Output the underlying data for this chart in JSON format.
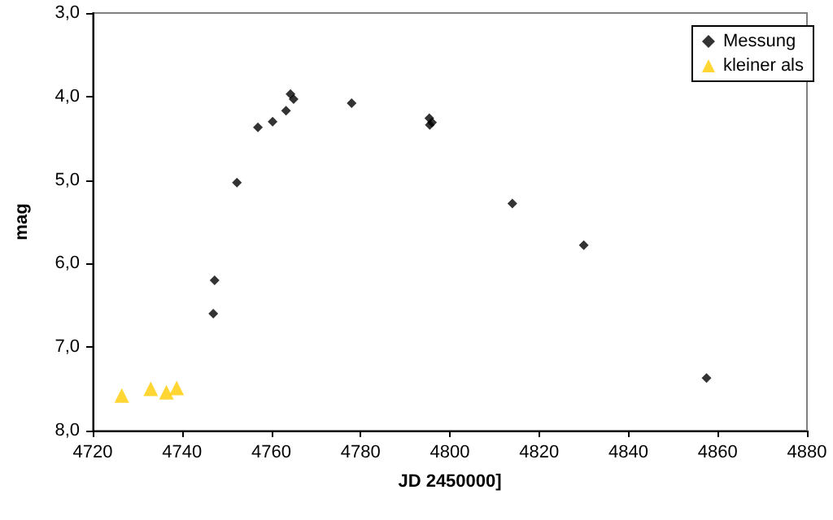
{
  "chart_data": {
    "type": "scatter",
    "xlabel": "JD 2450000]",
    "ylabel": "mag",
    "xlim": [
      4720,
      4880
    ],
    "xticks": [
      4720,
      4740,
      4760,
      4780,
      4800,
      4820,
      4840,
      4860,
      4880
    ],
    "ylim": [
      8.0,
      3.0
    ],
    "yticks": [
      {
        "value": 3,
        "label": "3,0"
      },
      {
        "value": 4,
        "label": "4,0"
      },
      {
        "value": 5,
        "label": "5,0"
      },
      {
        "value": 6,
        "label": "6,0"
      },
      {
        "value": 7,
        "label": "7,0"
      },
      {
        "value": 8,
        "label": "8,0"
      }
    ],
    "grid": false,
    "legend": "top right",
    "series": [
      {
        "name": "Messung",
        "color": "#000000",
        "marker": "diamond",
        "x": [
          4747,
          4747.3,
          4752.3,
          4757,
          4760.3,
          4763.3,
          4764.3,
          4765,
          4778,
          4795.4,
          4795.5,
          4796,
          4814,
          4830,
          4857.5
        ],
        "values": [
          6.6,
          6.2,
          5.03,
          4.37,
          4.3,
          4.17,
          3.97,
          4.03,
          4.08,
          4.26,
          4.34,
          4.31,
          5.28,
          5.78,
          7.37
        ]
      },
      {
        "name": "kleiner als",
        "color": "#ffcc00",
        "marker": "triangle",
        "x": [
          4726.5,
          4733,
          4736.5,
          4738.8
        ],
        "values": [
          7.58,
          7.5,
          7.54,
          7.49
        ]
      }
    ]
  }
}
